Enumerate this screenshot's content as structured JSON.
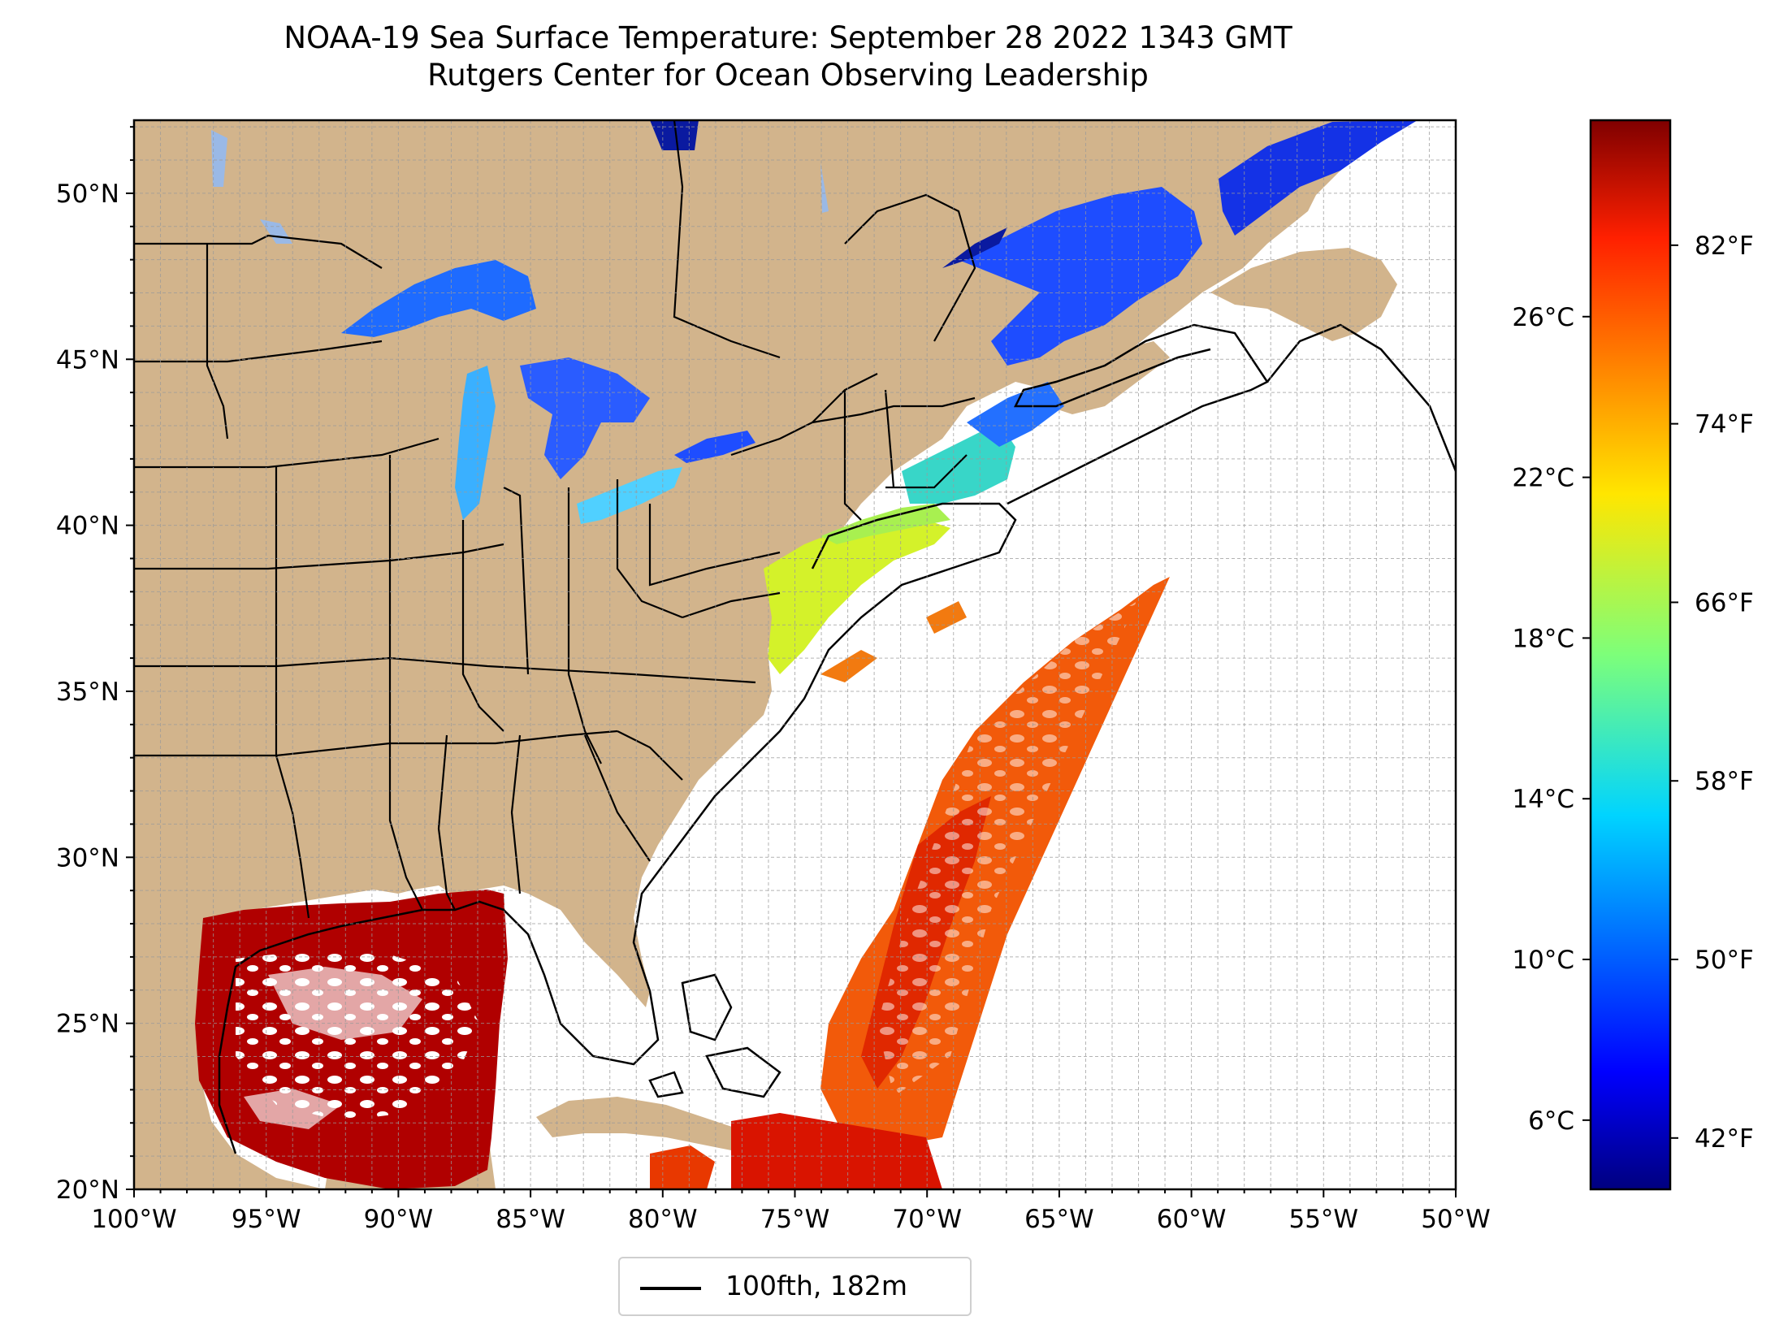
{
  "title": {
    "line1": "NOAA-19 Sea Surface Temperature: September 28 2022 1343 GMT",
    "line2": "Rutgers Center for Ocean Observing Leadership"
  },
  "map": {
    "lon_range": [
      -100,
      -50
    ],
    "lat_range": [
      20,
      52.2
    ],
    "lon_ticks": [
      "100°W",
      "95°W",
      "90°W",
      "85°W",
      "80°W",
      "75°W",
      "70°W",
      "65°W",
      "60°W",
      "55°W",
      "50°W"
    ],
    "lat_ticks": [
      "20°N",
      "25°N",
      "30°N",
      "35°N",
      "40°N",
      "45°N",
      "50°N"
    ],
    "gridlines": true,
    "land_color": "#d2b48c",
    "lake_color": "#9ab9e6",
    "ocean_color": "#ffffff"
  },
  "colorbar": {
    "colormap": "jet",
    "fahrenheit_ticks": [
      "42°F",
      "50°F",
      "58°F",
      "66°F",
      "74°F",
      "82°F"
    ],
    "celsius_ticks": [
      "6°C",
      "10°C",
      "14°C",
      "18°C",
      "22°C",
      "26°C"
    ]
  },
  "legend": {
    "label": "100fth, 182m",
    "line_color": "#000000"
  }
}
